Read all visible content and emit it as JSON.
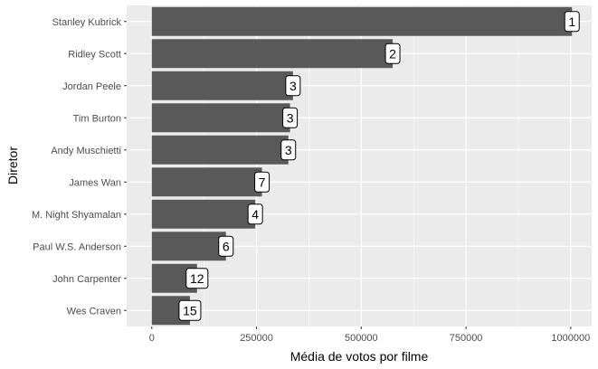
{
  "chart_data": {
    "type": "bar",
    "orientation": "horizontal",
    "xlabel": "Média de votos por filme",
    "ylabel": "Diretor",
    "xlim": [
      -60000,
      1050000
    ],
    "xticks": [
      0,
      250000,
      500000,
      750000,
      1000000
    ],
    "xtick_labels": [
      "0",
      "250000",
      "500000",
      "750000",
      "1000000"
    ],
    "categories": [
      "Stanley Kubrick",
      "Ridley Scott",
      "Jordan Peele",
      "Tim Burton",
      "Andy Muschietti",
      "James Wan",
      "M. Night Shyamalan",
      "Paul W.S. Anderson",
      "John Carpenter",
      "Wes Craven"
    ],
    "values": [
      1003000,
      575000,
      337000,
      330000,
      326000,
      263000,
      247000,
      177000,
      108000,
      91000
    ],
    "bar_labels": [
      "1",
      "2",
      "3",
      "3",
      "3",
      "7",
      "4",
      "6",
      "12",
      "15"
    ],
    "grid": true,
    "colors": {
      "panel": "#ebebeb",
      "grid": "#ffffff",
      "bar": "#595959"
    }
  }
}
